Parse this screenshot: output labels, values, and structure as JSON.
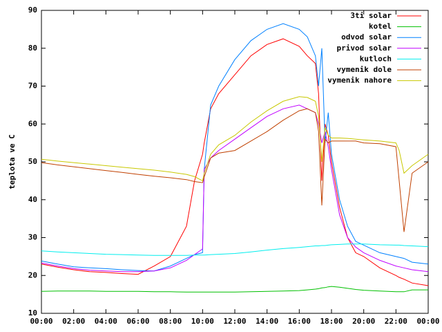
{
  "chart_data": {
    "type": "line",
    "ylabel": "teplota ve C",
    "x": [
      0,
      1,
      2,
      3,
      4,
      5,
      6,
      7,
      8,
      9,
      9.5,
      10,
      10.1,
      10.5,
      11,
      12,
      13,
      14,
      15,
      16,
      16.5,
      17,
      17.2,
      17.4,
      17.6,
      17.8,
      18,
      18.5,
      19,
      19.5,
      20,
      21,
      22,
      22.2,
      22.5,
      23,
      24
    ],
    "xlim": [
      0,
      24
    ],
    "xticks": [
      {
        "value": 0,
        "label": "00:00"
      },
      {
        "value": 2,
        "label": "02:00"
      },
      {
        "value": 4,
        "label": "04:00"
      },
      {
        "value": 6,
        "label": "06:00"
      },
      {
        "value": 8,
        "label": "08:00"
      },
      {
        "value": 10,
        "label": "10:00"
      },
      {
        "value": 12,
        "label": "12:00"
      },
      {
        "value": 14,
        "label": "14:00"
      },
      {
        "value": 16,
        "label": "16:00"
      },
      {
        "value": 18,
        "label": "18:00"
      },
      {
        "value": 20,
        "label": "20:00"
      },
      {
        "value": 22,
        "label": "22:00"
      },
      {
        "value": 24,
        "label": "00:00"
      }
    ],
    "ylim": [
      10,
      90
    ],
    "yticks": [
      10,
      20,
      30,
      40,
      50,
      60,
      70,
      80,
      90
    ],
    "legend": "top-right",
    "series": [
      {
        "name": "3ti solar",
        "color": "#ff0000",
        "values": [
          23,
          22.2,
          21.5,
          21,
          20.8,
          20.5,
          20.3,
          22.5,
          25,
          33,
          45,
          52,
          55,
          64,
          68,
          73,
          78,
          81,
          82.5,
          80.5,
          78,
          76,
          68,
          45,
          60,
          57,
          50,
          38,
          30,
          26,
          25,
          22,
          20,
          19.5,
          19,
          18,
          17.3
        ]
      },
      {
        "name": "kotel",
        "color": "#00c000",
        "values": [
          15.8,
          15.9,
          15.9,
          15.9,
          15.8,
          15.8,
          15.8,
          15.7,
          15.7,
          15.6,
          15.6,
          15.6,
          15.6,
          15.6,
          15.6,
          15.6,
          15.7,
          15.8,
          15.9,
          16,
          16.2,
          16.4,
          16.5,
          16.7,
          16.8,
          17,
          17.1,
          16.9,
          16.6,
          16.3,
          16.1,
          15.9,
          15.7,
          15.7,
          15.7,
          16.2,
          16.2
        ]
      },
      {
        "name": "odvod solar",
        "color": "#0080ff",
        "values": [
          23.8,
          23,
          22.3,
          22,
          21.8,
          21.5,
          21.3,
          21.2,
          22.5,
          24.5,
          25.5,
          26,
          48,
          65,
          70,
          77,
          82,
          85,
          86.5,
          85,
          83,
          78,
          70,
          80,
          55,
          63,
          52,
          40,
          33,
          29,
          28,
          26,
          25,
          24.8,
          24.5,
          23.5,
          23
        ]
      },
      {
        "name": "privod solar",
        "color": "#c000ff",
        "values": [
          23.3,
          22.5,
          21.8,
          21.4,
          21.2,
          21,
          21,
          21.2,
          22,
          24,
          25.5,
          27,
          48,
          51,
          53,
          56,
          59,
          62,
          64,
          65,
          64,
          63,
          60,
          55,
          58,
          54,
          48,
          36,
          30,
          27.5,
          26,
          24,
          22.5,
          22.3,
          22,
          21.5,
          21
        ]
      },
      {
        "name": "kutloch",
        "color": "#00eeee",
        "values": [
          26.5,
          26.2,
          26,
          25.8,
          25.6,
          25.5,
          25.4,
          25.3,
          25.3,
          25.3,
          25.4,
          25.4,
          25.4,
          25.5,
          25.6,
          25.8,
          26.2,
          26.7,
          27.1,
          27.4,
          27.6,
          27.8,
          27.8,
          27.9,
          27.9,
          28,
          28.1,
          28.2,
          28.3,
          28.3,
          28.3,
          28.1,
          28,
          28,
          27.9,
          27.8,
          27.6
        ]
      },
      {
        "name": "vymenik dole",
        "color": "#c04000",
        "values": [
          49.8,
          49.2,
          48.7,
          48.2,
          47.7,
          47.2,
          46.7,
          46.2,
          45.8,
          45.3,
          44.8,
          44.5,
          46,
          51,
          52.3,
          53,
          55.5,
          58,
          61,
          63.5,
          64,
          63,
          58,
          38.5,
          56,
          55,
          55.5,
          55.5,
          55.5,
          55.5,
          55,
          54.8,
          54,
          45,
          31.5,
          47,
          50
        ]
      },
      {
        "name": "vymenik nahore",
        "color": "#c8c800",
        "values": [
          50.7,
          50.2,
          49.8,
          49.4,
          49,
          48.6,
          48.2,
          47.8,
          47.3,
          46.7,
          46.1,
          45,
          47,
          52,
          54.5,
          57,
          60.5,
          63.5,
          66,
          67.2,
          67,
          66,
          62,
          50,
          59,
          57,
          56.3,
          56.3,
          56.2,
          56,
          55.8,
          55.5,
          55,
          53,
          47,
          49,
          52
        ]
      }
    ]
  }
}
